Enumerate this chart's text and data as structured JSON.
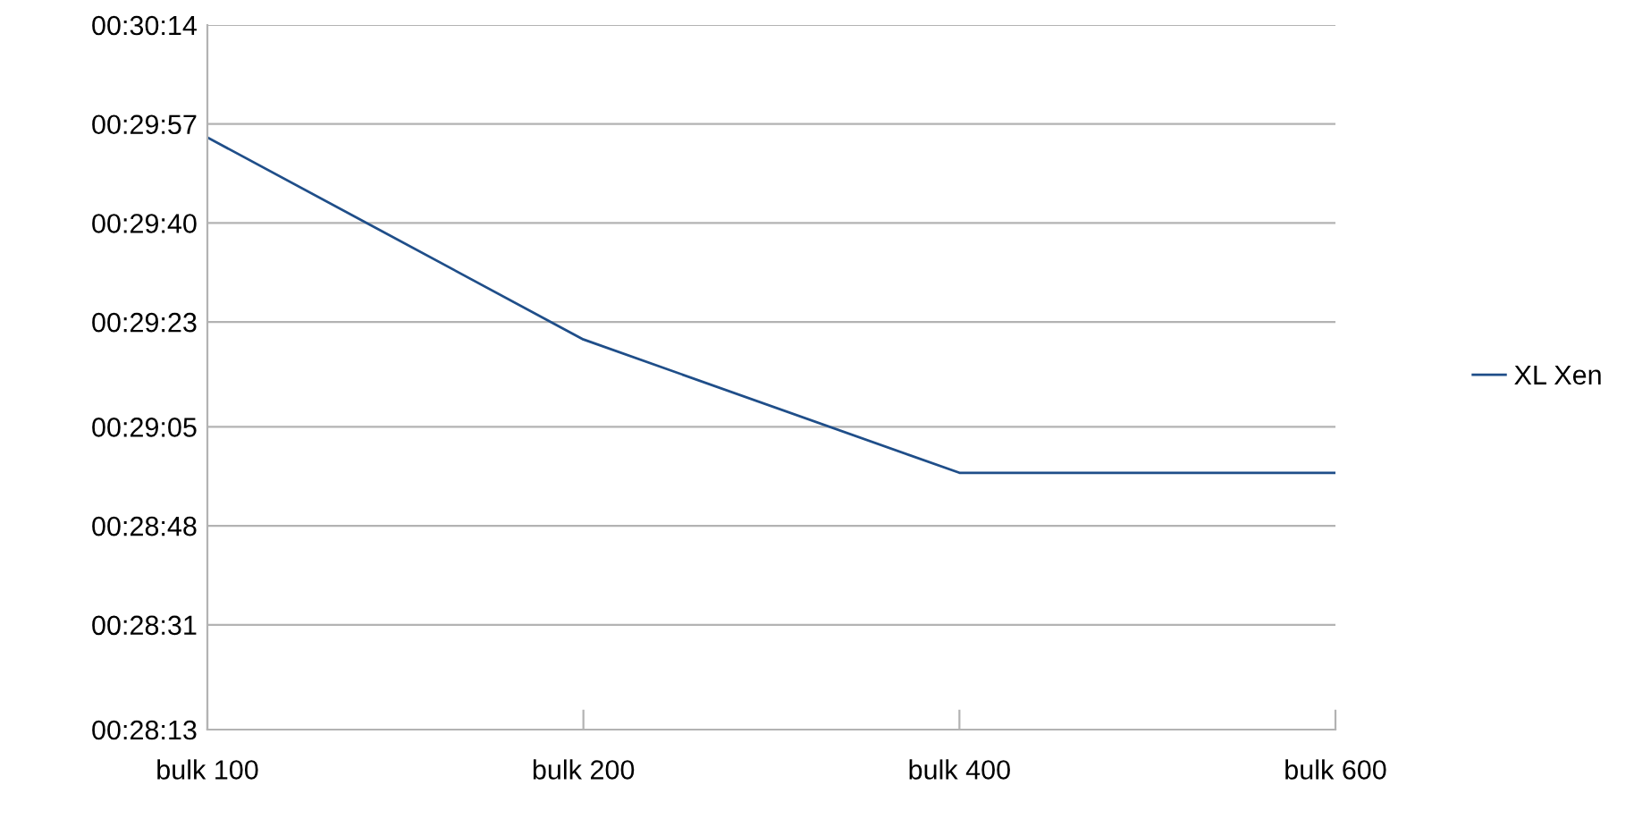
{
  "chart_data": {
    "type": "line",
    "categories": [
      "bulk 100",
      "bulk 200",
      "bulk 400",
      "bulk 600"
    ],
    "series": [
      {
        "name": "XL Xen",
        "color": "#1f4e89",
        "values": [
          1794.7,
          1760.0,
          1737.1,
          1737.1
        ]
      }
    ],
    "ylim": [
      1693,
      1814
    ],
    "yticks": [
      {
        "value": 1693,
        "label": "00:28:13"
      },
      {
        "value": 1711,
        "label": "00:28:31"
      },
      {
        "value": 1728,
        "label": "00:28:48"
      },
      {
        "value": 1745,
        "label": "00:29:05"
      },
      {
        "value": 1763,
        "label": "00:29:23"
      },
      {
        "value": 1780,
        "label": "00:29:40"
      },
      {
        "value": 1797,
        "label": "00:29:57"
      },
      {
        "value": 1814,
        "label": "00:30:14"
      }
    ],
    "grid": "y",
    "legend": "right",
    "marker": "none",
    "line_style": "solid"
  }
}
